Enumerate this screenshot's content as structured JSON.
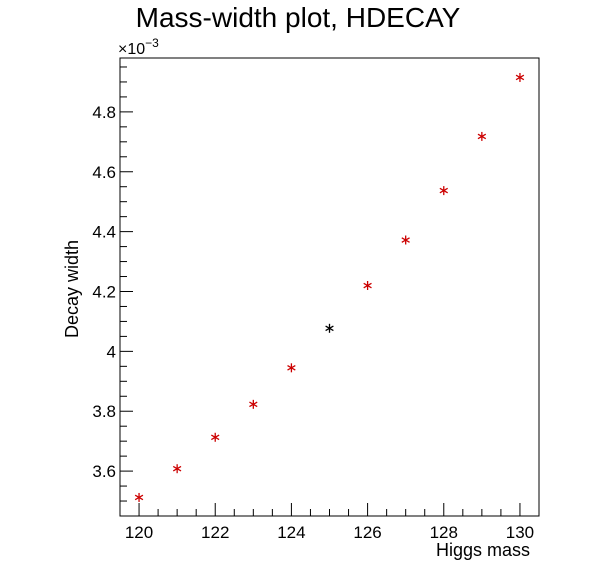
{
  "chart_data": {
    "type": "scatter",
    "title": "Mass-width plot, HDECAY",
    "xlabel": "Higgs mass",
    "ylabel": "Decay width",
    "y_exponent_label": "×10",
    "y_exponent_power": "−3",
    "xlim": [
      119.5,
      130.5
    ],
    "ylim": [
      3.45,
      4.98
    ],
    "x_ticks": [
      120,
      122,
      124,
      126,
      128,
      130
    ],
    "x_tick_labels": [
      "120",
      "122",
      "124",
      "126",
      "128",
      "130"
    ],
    "y_ticks": [
      3.6,
      3.8,
      4.0,
      4.2,
      4.4,
      4.6,
      4.8
    ],
    "y_tick_labels": [
      "3.6",
      "3.8",
      "4",
      "4.2",
      "4.4",
      "4.6",
      "4.8"
    ],
    "grid": false,
    "marker": "asterisk",
    "points": [
      {
        "x": 120,
        "y": 3.512,
        "color": "#cc0000"
      },
      {
        "x": 121,
        "y": 3.608,
        "color": "#cc0000"
      },
      {
        "x": 122,
        "y": 3.713,
        "color": "#cc0000"
      },
      {
        "x": 123,
        "y": 3.823,
        "color": "#cc0000"
      },
      {
        "x": 124,
        "y": 3.945,
        "color": "#cc0000"
      },
      {
        "x": 125,
        "y": 4.077,
        "color": "#000000"
      },
      {
        "x": 126,
        "y": 4.22,
        "color": "#cc0000"
      },
      {
        "x": 127,
        "y": 4.372,
        "color": "#cc0000"
      },
      {
        "x": 128,
        "y": 4.537,
        "color": "#cc0000"
      },
      {
        "x": 129,
        "y": 4.718,
        "color": "#cc0000"
      },
      {
        "x": 130,
        "y": 4.915,
        "color": "#cc0000"
      }
    ]
  }
}
